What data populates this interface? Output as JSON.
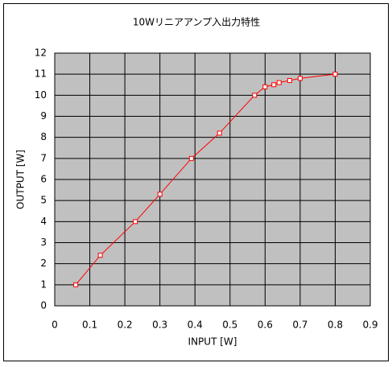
{
  "chart_data": {
    "type": "line",
    "title": "10Wリニアアンプ入出力特性",
    "x_label": "INPUT [W]",
    "y_label": "OUTPUT [W]",
    "x": [
      0.06,
      0.13,
      0.23,
      0.3,
      0.39,
      0.47,
      0.57,
      0.6,
      0.625,
      0.64,
      0.67,
      0.7,
      0.8
    ],
    "series": [
      {
        "color": "#ff0000",
        "values": [
          1,
          2.4,
          4,
          5.3,
          7,
          8.2,
          10,
          10.4,
          10.5,
          10.6,
          10.7,
          10.8,
          11
        ]
      }
    ],
    "xlim": [
      0,
      0.9
    ],
    "xticks": [
      0,
      0.1,
      0.2,
      0.3,
      0.4,
      0.5,
      0.6,
      0.7,
      0.8,
      0.9
    ],
    "ylim": [
      0,
      12
    ],
    "yticks": [
      0,
      1,
      2,
      3,
      4,
      5,
      6,
      7,
      8,
      9,
      10,
      11,
      12
    ],
    "grid": true,
    "plot_background": "#c0c0c0"
  }
}
